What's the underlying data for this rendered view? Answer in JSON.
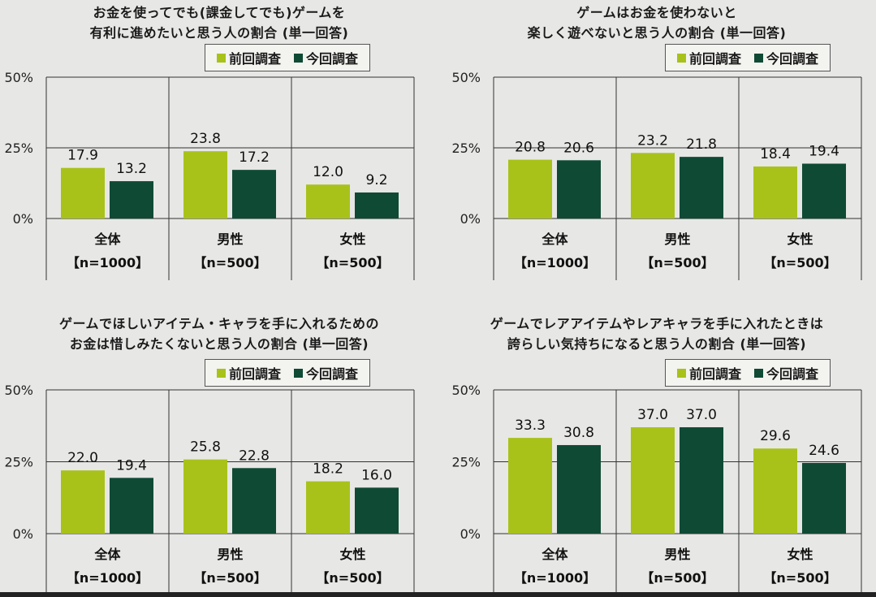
{
  "colors": {
    "previous": "#a9c21a",
    "current": "#0f4a35",
    "axis": "#333333"
  },
  "legend": {
    "previous": "前回調査",
    "current": "今回調査"
  },
  "groups": [
    {
      "name": "全体",
      "n": "【n=1000】"
    },
    {
      "name": "男性",
      "n": "【n=500】"
    },
    {
      "name": "女性",
      "n": "【n=500】"
    }
  ],
  "yticks": [
    "0%",
    "25%",
    "50%"
  ],
  "panels": [
    {
      "title_lines": [
        "お金を使ってでも(課金してでも)ゲームを",
        "有利に進めたいと思う人の割合 (単一回答)"
      ]
    },
    {
      "title_lines": [
        "ゲームはお金を使わないと",
        "楽しく遊べないと思う人の割合 (単一回答)"
      ]
    },
    {
      "title_lines": [
        "ゲームでほしいアイテム・キャラを手に入れるための",
        "お金は惜しみたくないと思う人の割合 (単一回答)"
      ]
    },
    {
      "title_lines": [
        "ゲームでレアアイテムやレアキャラを手に入れたときは",
        "誇らしい気持ちになると思う人の割合 (単一回答)"
      ]
    }
  ],
  "chart_data": [
    {
      "type": "bar",
      "title": "お金を使ってでも(課金してでも)ゲームを有利に進めたいと思う人の割合 (単一回答)",
      "categories": [
        "全体【n=1000】",
        "男性【n=500】",
        "女性【n=500】"
      ],
      "series": [
        {
          "name": "前回調査",
          "values": [
            17.9,
            23.8,
            12.0
          ]
        },
        {
          "name": "今回調査",
          "values": [
            13.2,
            17.2,
            9.2
          ]
        }
      ],
      "ylim": [
        0,
        50
      ],
      "unit": "%",
      "legend": "top-right"
    },
    {
      "type": "bar",
      "title": "ゲームはお金を使わないと楽しく遊べないと思う人の割合 (単一回答)",
      "categories": [
        "全体【n=1000】",
        "男性【n=500】",
        "女性【n=500】"
      ],
      "series": [
        {
          "name": "前回調査",
          "values": [
            20.8,
            23.2,
            18.4
          ]
        },
        {
          "name": "今回調査",
          "values": [
            20.6,
            21.8,
            19.4
          ]
        }
      ],
      "ylim": [
        0,
        50
      ],
      "unit": "%",
      "legend": "top-right"
    },
    {
      "type": "bar",
      "title": "ゲームでほしいアイテム・キャラを手に入れるためのお金は惜しみたくないと思う人の割合 (単一回答)",
      "categories": [
        "全体【n=1000】",
        "男性【n=500】",
        "女性【n=500】"
      ],
      "series": [
        {
          "name": "前回調査",
          "values": [
            22.0,
            25.8,
            18.2
          ]
        },
        {
          "name": "今回調査",
          "values": [
            19.4,
            22.8,
            16.0
          ]
        }
      ],
      "ylim": [
        0,
        50
      ],
      "unit": "%",
      "legend": "top-right"
    },
    {
      "type": "bar",
      "title": "ゲームでレアアイテムやレアキャラを手に入れたときは誇らしい気持ちになると思う人の割合 (単一回答)",
      "categories": [
        "全体【n=1000】",
        "男性【n=500】",
        "女性【n=500】"
      ],
      "series": [
        {
          "name": "前回調査",
          "values": [
            33.3,
            37.0,
            29.6
          ]
        },
        {
          "name": "今回調査",
          "values": [
            30.8,
            37.0,
            24.6
          ]
        }
      ],
      "ylim": [
        0,
        50
      ],
      "unit": "%",
      "legend": "top-right"
    }
  ]
}
